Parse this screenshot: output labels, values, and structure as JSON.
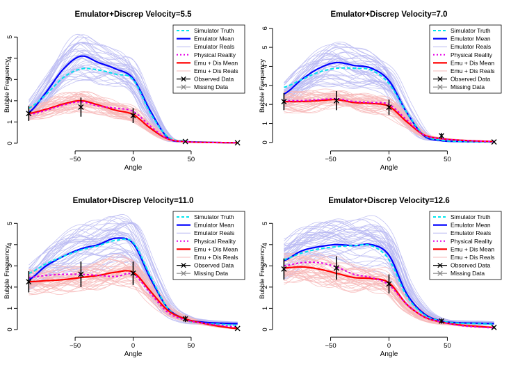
{
  "chart_data": [
    {
      "type": "line",
      "title": "Emulator+Discrep Velocity=5.5",
      "xlabel": "Angle",
      "ylabel": "Bubble Frequency",
      "xlim": [
        -95,
        95
      ],
      "ylim": [
        -0.1,
        5.5
      ],
      "xticks": [
        -50,
        0,
        50
      ],
      "yticks": [
        0,
        1,
        2,
        3,
        4,
        5
      ],
      "grid": false,
      "legend_position": "top-right",
      "series": [
        {
          "name": "Simulator Truth",
          "x": [
            -90,
            -75,
            -60,
            -45,
            -30,
            -15,
            0,
            15,
            30,
            45,
            60,
            75,
            90
          ],
          "y": [
            1.65,
            2.3,
            3.1,
            3.5,
            3.45,
            3.25,
            3.0,
            1.4,
            0.3,
            0.1,
            0.05,
            0.03,
            0.02
          ]
        },
        {
          "name": "Emulator Mean",
          "x": [
            -90,
            -75,
            -60,
            -45,
            -30,
            -15,
            0,
            15,
            30,
            45,
            60,
            75,
            90
          ],
          "y": [
            1.45,
            2.4,
            3.5,
            4.1,
            3.8,
            3.5,
            3.05,
            1.5,
            0.25,
            0.08,
            0.05,
            0.03,
            0.02
          ]
        },
        {
          "name": "Physical Reality",
          "x": [
            -90,
            -75,
            -60,
            -45,
            -30,
            -15,
            0,
            15,
            30,
            45,
            60,
            75,
            90
          ],
          "y": [
            1.35,
            1.55,
            1.8,
            1.95,
            1.75,
            1.65,
            1.5,
            0.8,
            0.2,
            0.08,
            0.04,
            0.03,
            0.02
          ]
        },
        {
          "name": "Emu + Dis Mean",
          "x": [
            -90,
            -75,
            -60,
            -45,
            -30,
            -15,
            0,
            15,
            30,
            45,
            60,
            75,
            90
          ],
          "y": [
            1.4,
            1.6,
            1.85,
            2.0,
            1.8,
            1.55,
            1.35,
            0.7,
            0.2,
            0.07,
            0.04,
            0.03,
            0.02
          ]
        }
      ],
      "observed_data": [
        {
          "x": -90,
          "y": 1.4,
          "err": 0.35
        },
        {
          "x": -45,
          "y": 1.7,
          "err": 0.45
        },
        {
          "x": 0,
          "y": 1.3,
          "err": 0.35
        },
        {
          "x": 45,
          "y": 0.08,
          "err": 0.05
        },
        {
          "x": 90,
          "y": 0.02,
          "err": 0.02
        }
      ]
    },
    {
      "type": "line",
      "title": "Emulator+Discrep Velocity=7.0",
      "xlabel": "Angle",
      "ylabel": "Bubble Frequency",
      "xlim": [
        -95,
        95
      ],
      "ylim": [
        -0.15,
        6.1
      ],
      "xticks": [
        -50,
        0,
        50
      ],
      "yticks": [
        0,
        1,
        2,
        3,
        4,
        5,
        6
      ],
      "grid": false,
      "legend_position": "top-right",
      "series": [
        {
          "name": "Simulator Truth",
          "x": [
            -90,
            -75,
            -60,
            -45,
            -30,
            -15,
            0,
            15,
            30,
            45,
            60,
            75,
            90
          ],
          "y": [
            2.9,
            3.3,
            3.7,
            3.9,
            3.9,
            3.8,
            3.1,
            1.6,
            0.4,
            0.12,
            0.06,
            0.04,
            0.03
          ]
        },
        {
          "name": "Emulator Mean",
          "x": [
            -90,
            -75,
            -60,
            -45,
            -30,
            -15,
            0,
            15,
            30,
            45,
            60,
            75,
            90
          ],
          "y": [
            2.55,
            3.3,
            3.9,
            4.2,
            4.05,
            3.9,
            3.25,
            1.6,
            0.35,
            0.1,
            0.05,
            0.04,
            0.03
          ]
        },
        {
          "name": "Physical Reality",
          "x": [
            -90,
            -75,
            -60,
            -45,
            -30,
            -15,
            0,
            15,
            30,
            45,
            60,
            75,
            90
          ],
          "y": [
            2.2,
            2.2,
            2.25,
            2.3,
            2.15,
            2.1,
            2.0,
            1.2,
            0.4,
            0.2,
            0.12,
            0.08,
            0.05
          ]
        },
        {
          "name": "Emu + Dis Mean",
          "x": [
            -90,
            -75,
            -60,
            -45,
            -30,
            -15,
            0,
            15,
            30,
            45,
            60,
            75,
            90
          ],
          "y": [
            2.15,
            2.15,
            2.2,
            2.25,
            2.1,
            2.05,
            1.9,
            1.1,
            0.4,
            0.2,
            0.12,
            0.08,
            0.05
          ]
        }
      ],
      "observed_data": [
        {
          "x": -90,
          "y": 2.15,
          "err": 0.45
        },
        {
          "x": -45,
          "y": 2.2,
          "err": 0.5
        },
        {
          "x": 0,
          "y": 1.85,
          "err": 0.4
        },
        {
          "x": 45,
          "y": 0.35,
          "err": 0.15
        },
        {
          "x": 90,
          "y": 0.03,
          "err": 0.02
        }
      ]
    },
    {
      "type": "line",
      "title": "Emulator+Discrep Velocity=11.0",
      "xlabel": "Angle",
      "ylabel": "Bubble Frequency",
      "xlim": [
        -95,
        95
      ],
      "ylim": [
        -0.1,
        5.5
      ],
      "xticks": [
        -50,
        0,
        50
      ],
      "yticks": [
        0,
        1,
        2,
        3,
        4,
        5
      ],
      "grid": false,
      "legend_position": "top-right",
      "series": [
        {
          "name": "Simulator Truth",
          "x": [
            -90,
            -75,
            -60,
            -45,
            -30,
            -15,
            0,
            15,
            30,
            45,
            60,
            75,
            90
          ],
          "y": [
            2.65,
            3.1,
            3.45,
            3.75,
            3.95,
            4.2,
            4.1,
            2.5,
            1.0,
            0.45,
            0.3,
            0.25,
            0.2
          ]
        },
        {
          "name": "Emulator Mean",
          "x": [
            -90,
            -75,
            -60,
            -45,
            -30,
            -15,
            0,
            15,
            30,
            45,
            60,
            75,
            90
          ],
          "y": [
            2.35,
            3.0,
            3.45,
            3.8,
            4.0,
            4.3,
            4.05,
            2.4,
            1.0,
            0.5,
            0.35,
            0.3,
            0.28
          ]
        },
        {
          "name": "Physical Reality",
          "x": [
            -90,
            -75,
            -60,
            -45,
            -30,
            -15,
            0,
            15,
            30,
            45,
            60,
            75,
            90
          ],
          "y": [
            2.45,
            2.55,
            2.6,
            2.6,
            2.55,
            2.5,
            2.6,
            1.7,
            0.8,
            0.45,
            0.3,
            0.2,
            0.12
          ]
        },
        {
          "name": "Emu + Dis Mean",
          "x": [
            -90,
            -75,
            -60,
            -45,
            -30,
            -15,
            0,
            15,
            30,
            45,
            60,
            75,
            90
          ],
          "y": [
            2.25,
            2.3,
            2.35,
            2.45,
            2.55,
            2.7,
            2.7,
            1.8,
            0.9,
            0.5,
            0.3,
            0.15,
            0.05
          ]
        }
      ],
      "observed_data": [
        {
          "x": -90,
          "y": 2.25,
          "err": 0.5
        },
        {
          "x": -45,
          "y": 2.6,
          "err": 0.6
        },
        {
          "x": 0,
          "y": 2.65,
          "err": 0.55
        },
        {
          "x": 45,
          "y": 0.5,
          "err": 0.15
        },
        {
          "x": 90,
          "y": 0.05,
          "err": 0.04
        }
      ]
    },
    {
      "type": "line",
      "title": "Emulator+Discrep Velocity=12.6",
      "xlabel": "Angle",
      "ylabel": "Bubble Frequency",
      "xlim": [
        -95,
        95
      ],
      "ylim": [
        -0.1,
        5.5
      ],
      "xticks": [
        -50,
        0,
        50
      ],
      "yticks": [
        0,
        1,
        2,
        3,
        4,
        5
      ],
      "grid": false,
      "legend_position": "top-right",
      "series": [
        {
          "name": "Simulator Truth",
          "x": [
            -90,
            -75,
            -60,
            -45,
            -30,
            -15,
            0,
            15,
            30,
            45,
            60,
            75,
            90
          ],
          "y": [
            3.3,
            3.6,
            3.8,
            3.9,
            3.95,
            3.95,
            3.3,
            1.6,
            0.7,
            0.4,
            0.3,
            0.28,
            0.25
          ]
        },
        {
          "name": "Emulator Mean",
          "x": [
            -90,
            -75,
            -60,
            -45,
            -30,
            -15,
            0,
            15,
            30,
            45,
            60,
            75,
            90
          ],
          "y": [
            3.25,
            3.7,
            3.9,
            4.0,
            3.95,
            4.0,
            3.5,
            1.7,
            0.75,
            0.4,
            0.32,
            0.3,
            0.28
          ]
        },
        {
          "name": "Physical Reality",
          "x": [
            -90,
            -75,
            -60,
            -45,
            -30,
            -15,
            0,
            15,
            30,
            45,
            60,
            75,
            90
          ],
          "y": [
            3.0,
            3.15,
            3.15,
            2.95,
            2.6,
            2.45,
            2.1,
            1.2,
            0.6,
            0.35,
            0.2,
            0.12,
            0.08
          ]
        },
        {
          "name": "Emu + Dis Mean",
          "x": [
            -90,
            -75,
            -60,
            -45,
            -30,
            -15,
            0,
            15,
            30,
            45,
            60,
            75,
            90
          ],
          "y": [
            2.9,
            2.95,
            2.85,
            2.65,
            2.45,
            2.4,
            2.2,
            1.2,
            0.6,
            0.35,
            0.22,
            0.15,
            0.1
          ]
        }
      ],
      "observed_data": [
        {
          "x": -90,
          "y": 2.85,
          "err": 0.5
        },
        {
          "x": -45,
          "y": 2.9,
          "err": 0.55
        },
        {
          "x": 0,
          "y": 2.15,
          "err": 0.45
        },
        {
          "x": 45,
          "y": 0.4,
          "err": 0.12
        },
        {
          "x": 90,
          "y": 0.1,
          "err": 0.05
        }
      ]
    }
  ],
  "legend_entries": [
    "Simulator Truth",
    "Emulator Mean",
    "Emulator Reals",
    "Physical Reality",
    "Emu + Dis Mean",
    "Emu + Dis Reals",
    "Observed Data",
    "Missing Data"
  ],
  "styles": {
    "simulator_truth": "#00e5ee",
    "emulator_mean": "#0000ff",
    "emulator_reals": "#b8b8f2",
    "physical_reality": "#e600e6",
    "emu_dis_mean": "#ff0000",
    "emu_dis_reals": "#f7b8b8",
    "observed": "#000000",
    "missing": "#888888"
  }
}
